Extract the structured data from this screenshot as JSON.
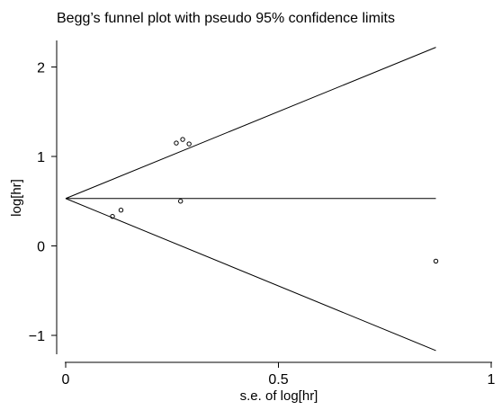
{
  "chart_data": {
    "type": "scatter",
    "title": "Begg’s funnel plot with pseudo 95% confidence limits",
    "xlabel": "s.e. of log[hr]",
    "ylabel": "log[hr]",
    "xlim": [
      0,
      1
    ],
    "ylim": [
      -1.3,
      2.35
    ],
    "x_ticks": [
      {
        "value": 0,
        "label": "0"
      },
      {
        "value": 0.5,
        "label": "0.5"
      },
      {
        "value": 1,
        "label": "1"
      }
    ],
    "y_ticks": [
      {
        "value": -1,
        "label": "−1"
      },
      {
        "value": 0,
        "label": "0"
      },
      {
        "value": 1,
        "label": "1"
      },
      {
        "value": 2,
        "label": "2"
      }
    ],
    "grid": false,
    "pooled_estimate": 0.53,
    "funnel_limits": {
      "x_end": 0.87,
      "upper_end": 2.22,
      "lower_end": -1.17
    },
    "series": [
      {
        "points": [
          {
            "x": 0.11,
            "y": 0.33
          },
          {
            "x": 0.13,
            "y": 0.4
          },
          {
            "x": 0.26,
            "y": 1.15
          },
          {
            "x": 0.27,
            "y": 0.5
          },
          {
            "x": 0.275,
            "y": 1.19
          },
          {
            "x": 0.29,
            "y": 1.14
          },
          {
            "x": 0.87,
            "y": -0.17
          }
        ]
      }
    ]
  }
}
